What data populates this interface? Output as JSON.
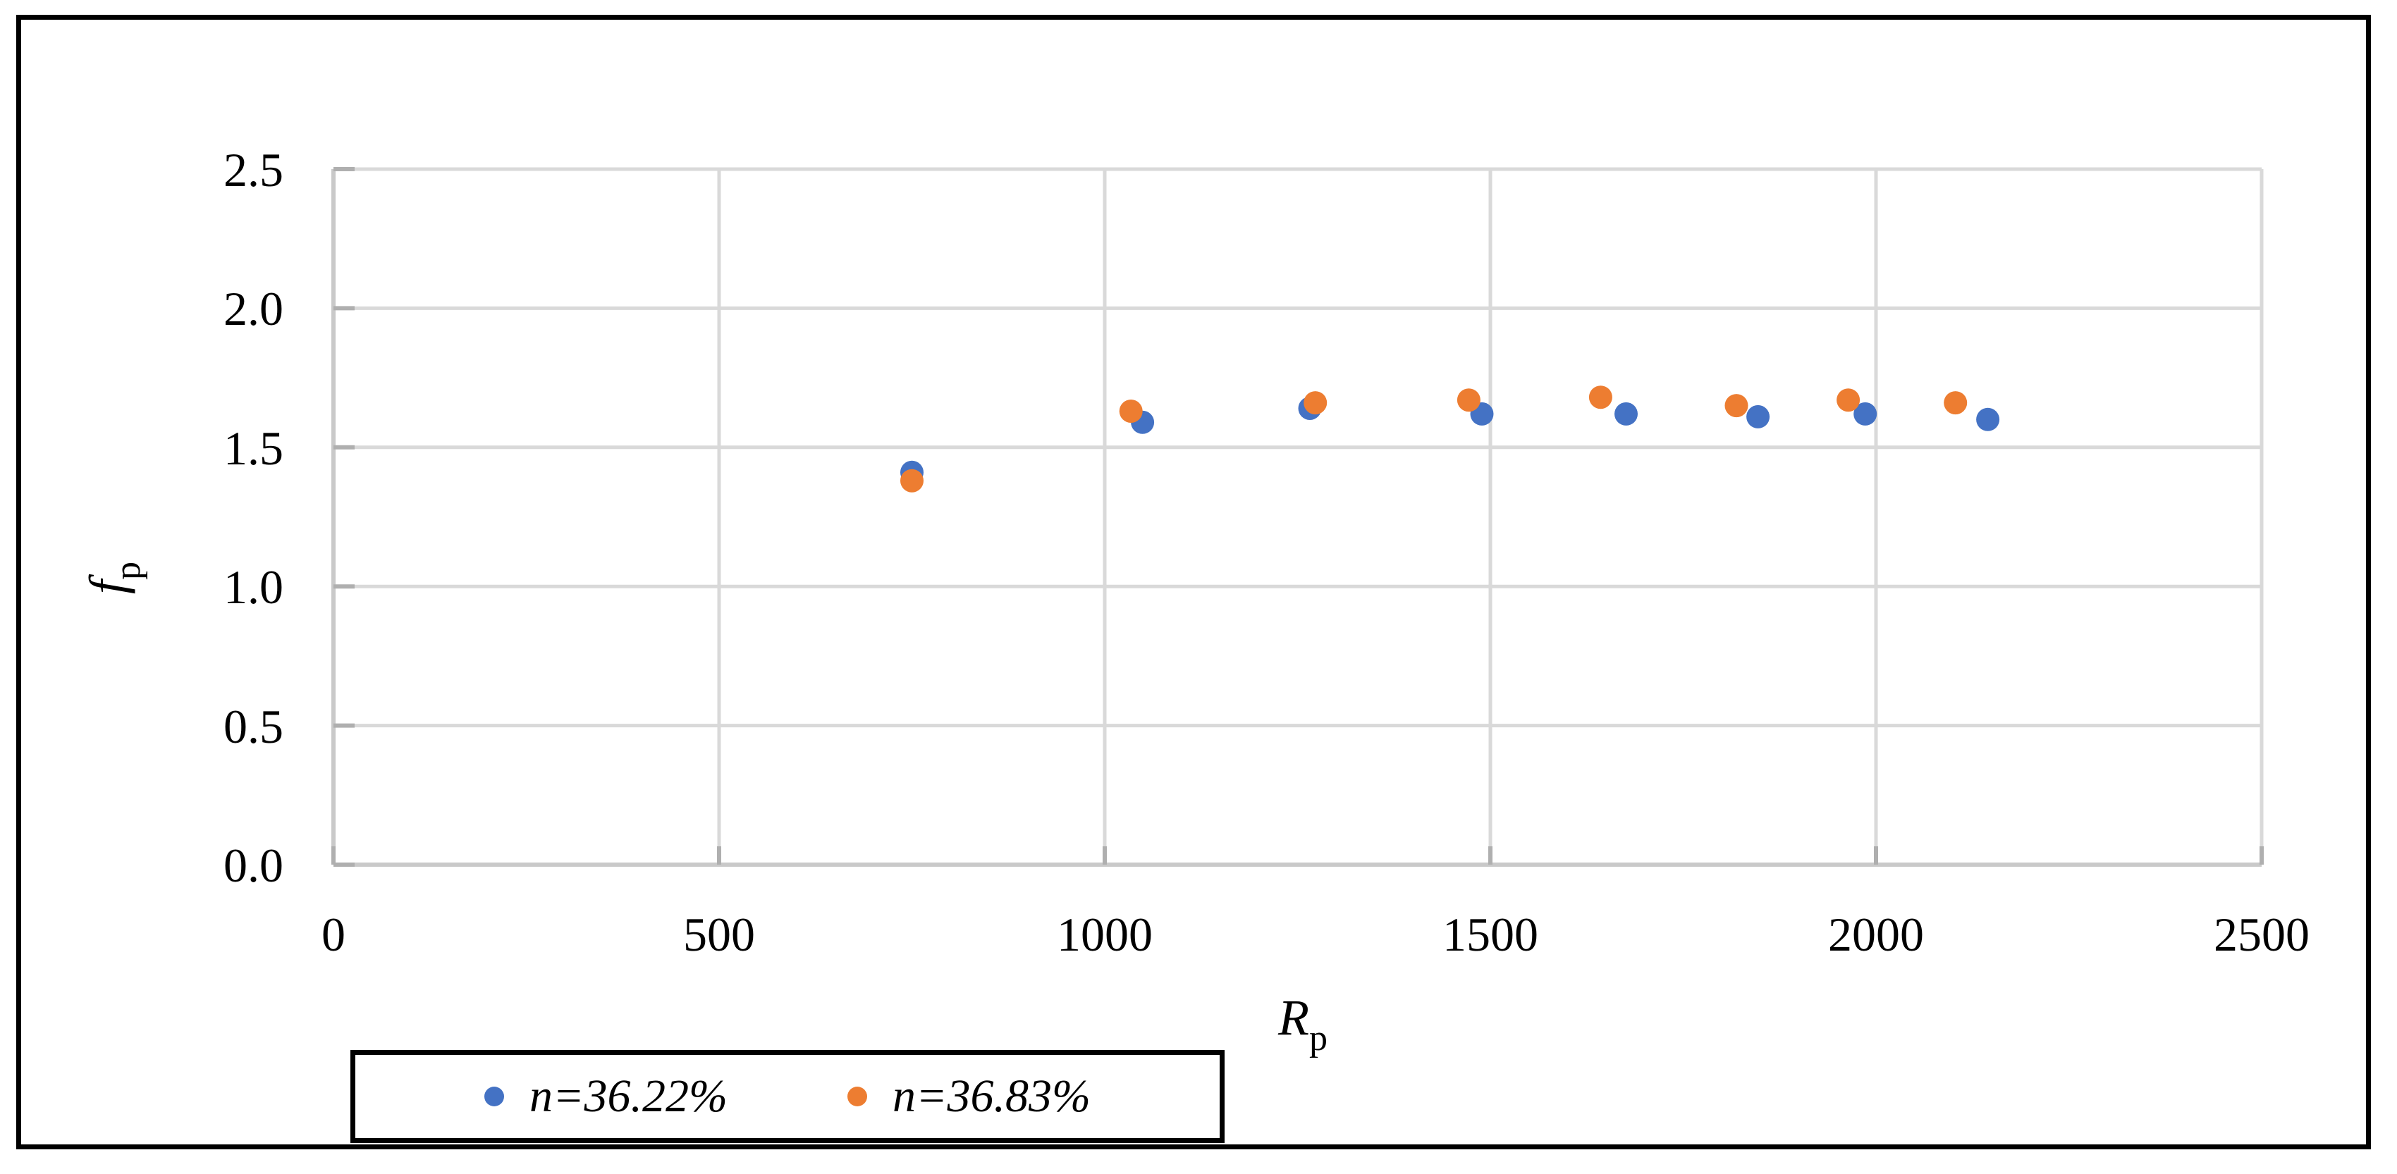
{
  "figure": {
    "background": "#ffffff",
    "border_color": "#000000"
  },
  "chart_data": {
    "type": "scatter",
    "title": "",
    "xlabel": "R",
    "xlabel_subscript": "p",
    "ylabel": "f",
    "ylabel_subscript": "p",
    "xlim": [
      0,
      2500
    ],
    "ylim": [
      0.0,
      2.5
    ],
    "x_ticks": [
      0,
      500,
      1000,
      1500,
      2000,
      2500
    ],
    "x_tick_labels": [
      "0",
      "500",
      "1000",
      "1500",
      "2000",
      "2500"
    ],
    "y_ticks": [
      0.0,
      0.5,
      1.0,
      1.5,
      2.0,
      2.5
    ],
    "y_tick_labels": [
      "0.0",
      "0.5",
      "1.0",
      "1.5",
      "2.0",
      "2.5"
    ],
    "grid": true,
    "gridline_color": "#D9D9D9",
    "axis_line_color": "#C9C9C9",
    "tick_mark_color": "#AFAFAF",
    "legend_position": "bottom-left",
    "series": [
      {
        "name": "n=36.22%",
        "color": "#4472C4",
        "marker": "circle",
        "points": [
          [
            750,
            1.41
          ],
          [
            1049,
            1.59
          ],
          [
            1266,
            1.64
          ],
          [
            1489,
            1.62
          ],
          [
            1676,
            1.62
          ],
          [
            1847,
            1.61
          ],
          [
            1986,
            1.62
          ],
          [
            2145,
            1.6
          ]
        ]
      },
      {
        "name": "n=36.83%",
        "color": "#ED7D31",
        "marker": "circle",
        "points": [
          [
            750,
            1.38
          ],
          [
            1034,
            1.63
          ],
          [
            1273,
            1.66
          ],
          [
            1472,
            1.67
          ],
          [
            1643,
            1.68
          ],
          [
            1819,
            1.65
          ],
          [
            1964,
            1.67
          ],
          [
            2103,
            1.66
          ]
        ]
      }
    ]
  }
}
